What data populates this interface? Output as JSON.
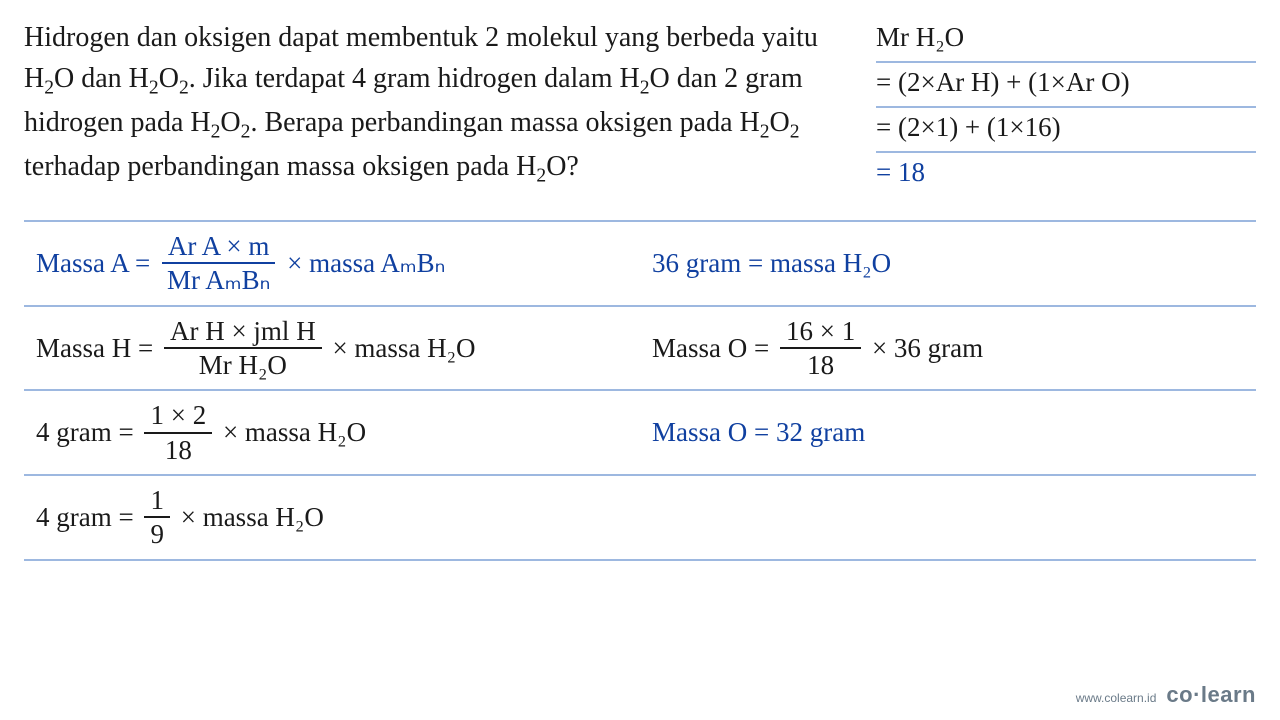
{
  "question": {
    "text_html": "Hidrogen dan oksigen dapat membentuk 2 molekul yang berbeda yaitu H<sub>2</sub>O dan H<sub>2</sub>O<sub>2</sub>. Jika terdapat 4 gram hidrogen dalam H<sub>2</sub>O dan 2 gram hidrogen pada H<sub>2</sub>O<sub>2</sub>. Berapa perbandingan massa oksigen pada H<sub>2</sub>O<sub>2</sub> terhadap perbandingan massa oksigen pada H<sub>2</sub>O?"
  },
  "mr": {
    "row1": "Mr H₂O",
    "row2": "= (2×Ar H) + (1×Ar O)",
    "row3": "= (2×1) + (1×16)",
    "row4": "= 18"
  },
  "work": {
    "r1_left_label": "Massa A =",
    "r1_left_num": "Ar A × m",
    "r1_left_den": "Mr AₘBₙ",
    "r1_left_tail": "× massa AₘBₙ",
    "r1_right": "36 gram = massa H₂O",
    "r2_left_label": "Massa H =",
    "r2_left_num": "Ar H × jml H",
    "r2_left_den": "Mr H₂O",
    "r2_left_tail": "× massa H₂O",
    "r2_right_label": "Massa O =",
    "r2_right_num": "16 × 1",
    "r2_right_den": "18",
    "r2_right_tail": "× 36 gram",
    "r3_left_label": "4 gram =",
    "r3_left_num": "1 × 2",
    "r3_left_den": "18",
    "r3_left_tail": "× massa H₂O",
    "r3_right": "Massa O = 32 gram",
    "r4_left_label": "4 gram =",
    "r4_left_num": "1",
    "r4_left_den": "9",
    "r4_left_tail": "× massa H₂O"
  },
  "footer": {
    "url": "www.colearn.id",
    "brand_plain": "co",
    "brand_dot": "·",
    "brand_bold": "learn"
  },
  "colors": {
    "text": "#1a1a1a",
    "accent": "#1040a0",
    "ruling": "#9db8e0",
    "footer": "#6a7a88",
    "background": "#ffffff"
  }
}
